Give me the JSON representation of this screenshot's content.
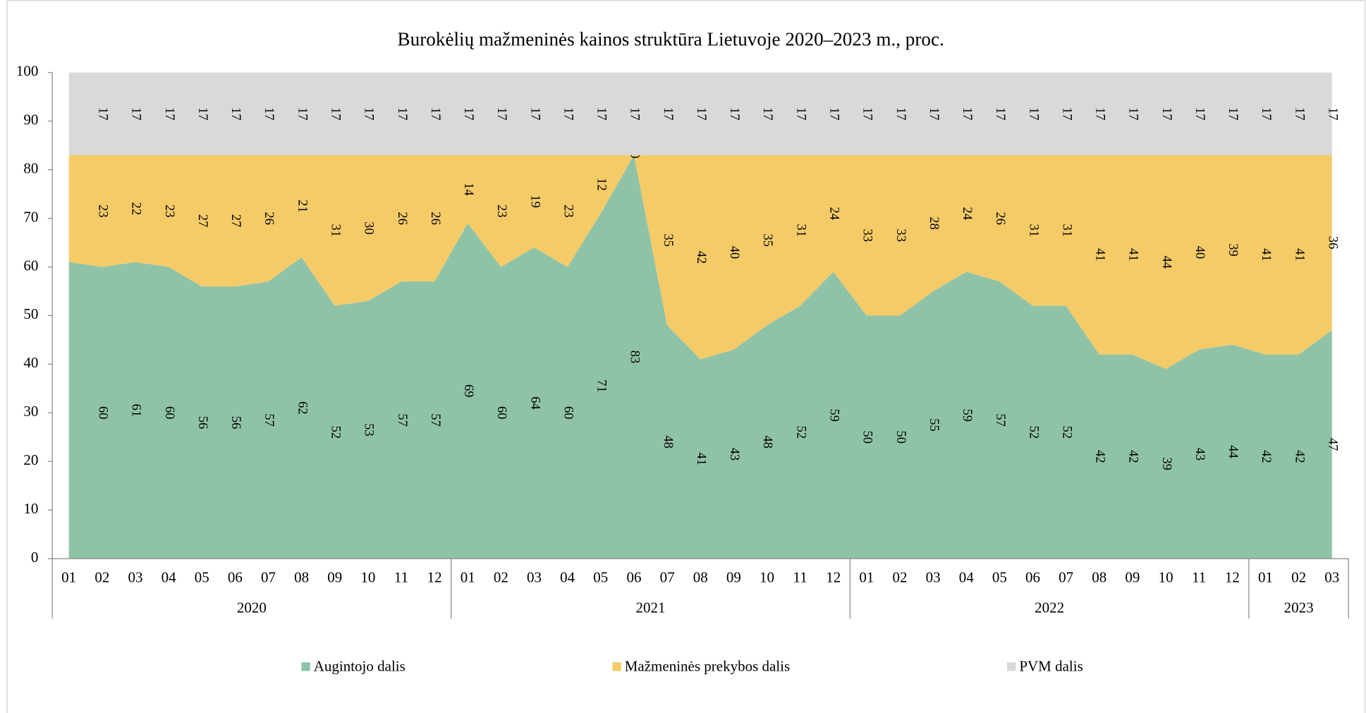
{
  "chart_data": {
    "type": "stacked_area",
    "title": "Burokėlių mažmeninės kainos struktūra Lietuvoje 2020–2023 m., proc.",
    "categories": [
      "01",
      "02",
      "03",
      "04",
      "05",
      "06",
      "07",
      "08",
      "09",
      "10",
      "11",
      "12",
      "01",
      "02",
      "03",
      "04",
      "05",
      "06",
      "07",
      "08",
      "09",
      "10",
      "11",
      "12",
      "01",
      "02",
      "03",
      "04",
      "05",
      "06",
      "07",
      "08",
      "09",
      "10",
      "11",
      "12",
      "01",
      "02",
      "03"
    ],
    "groups": [
      {
        "name": "2020",
        "size": 12
      },
      {
        "name": "2021",
        "size": 12
      },
      {
        "name": "2022",
        "size": 12
      },
      {
        "name": "2023",
        "size": 3
      }
    ],
    "series": [
      {
        "name": "Augintojo dalis",
        "color": "#8fc3a8",
        "values": [
          61,
          60,
          61,
          60,
          56,
          56,
          57,
          62,
          52,
          53,
          57,
          57,
          69,
          60,
          64,
          60,
          71,
          83,
          48,
          41,
          43,
          48,
          52,
          59,
          50,
          50,
          55,
          59,
          57,
          52,
          52,
          42,
          42,
          39,
          43,
          44,
          42,
          42,
          47
        ],
        "value_labels": [
          null,
          "60",
          "61",
          "60",
          "56",
          "56",
          "57",
          "62",
          "52",
          "53",
          "57",
          "57",
          "69",
          "60",
          "64",
          "60",
          "71",
          "83",
          "48",
          "41",
          "43",
          "48",
          "52",
          "59",
          "50",
          "50",
          "55",
          "59",
          "57",
          "52",
          "52",
          "42",
          "42",
          "39",
          "43",
          "44",
          "42",
          "42",
          "47"
        ]
      },
      {
        "name": "Mažmeninės prekybos dalis",
        "color": "#f5cb68",
        "values": [
          22,
          23,
          22,
          23,
          27,
          27,
          26,
          21,
          31,
          30,
          26,
          26,
          14,
          23,
          19,
          23,
          12,
          0,
          35,
          42,
          40,
          35,
          31,
          24,
          33,
          33,
          28,
          24,
          26,
          31,
          31,
          41,
          41,
          44,
          40,
          39,
          41,
          41,
          36
        ],
        "value_labels": [
          null,
          "23",
          "22",
          "23",
          "27",
          "27",
          "26",
          "21",
          "31",
          "30",
          "26",
          "26",
          "14",
          "23",
          "19",
          "23",
          "12",
          "0",
          "35",
          "42",
          "40",
          "35",
          "31",
          "24",
          "33",
          "33",
          "28",
          "24",
          "26",
          "31",
          "31",
          "41",
          "41",
          "44",
          "40",
          "39",
          "41",
          "41",
          "36"
        ]
      },
      {
        "name": "PVM dalis",
        "color": "#d9d9d9",
        "values": [
          17,
          17,
          17,
          17,
          17,
          17,
          17,
          17,
          17,
          17,
          17,
          17,
          17,
          17,
          17,
          17,
          17,
          17,
          17,
          17,
          17,
          17,
          17,
          17,
          17,
          17,
          17,
          17,
          17,
          17,
          17,
          17,
          17,
          17,
          17,
          17,
          17,
          17,
          17
        ],
        "value_labels": [
          null,
          "17",
          "17",
          "17",
          "17",
          "17",
          "17",
          "17",
          "17",
          "17",
          "17",
          "17",
          "17",
          "17",
          "17",
          "17",
          "17",
          "17",
          "17",
          "17",
          "17",
          "17",
          "17",
          "17",
          "17",
          "17",
          "17",
          "17",
          "17",
          "17",
          "17",
          "17",
          "17",
          "17",
          "17",
          "17",
          "17",
          "17",
          "17"
        ]
      }
    ],
    "ylim": [
      0,
      100
    ],
    "yticks": [
      0,
      10,
      20,
      30,
      40,
      50,
      60,
      70,
      80,
      90,
      100
    ],
    "legend": "bottom"
  }
}
